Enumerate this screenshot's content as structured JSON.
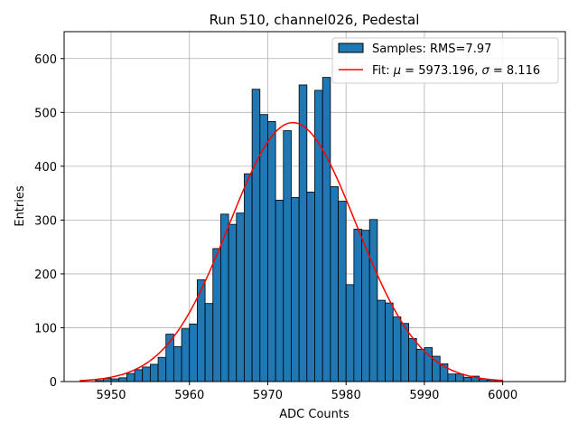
{
  "chart_data": {
    "type": "bar",
    "title": "Run 510, channel026, Pedestal",
    "xlabel": "ADC Counts",
    "ylabel": "Entries",
    "xlim": [
      5944,
      6008
    ],
    "ylim": [
      0,
      650
    ],
    "xticks": [
      5950,
      5960,
      5970,
      5980,
      5990,
      6000
    ],
    "yticks": [
      0,
      100,
      200,
      300,
      400,
      500,
      600
    ],
    "grid": true,
    "legend_position": "top-right",
    "colors": {
      "bars": "#1f77b4",
      "bar_edge": "#000000",
      "fit": "#ff0000",
      "grid": "#b0b0b0"
    },
    "histogram": {
      "name": "Samples: RMS=7.97",
      "bin_width": 1,
      "bins": [
        [
          5948.5,
          2
        ],
        [
          5949.5,
          6
        ],
        [
          5950.5,
          5
        ],
        [
          5951.5,
          7
        ],
        [
          5952.5,
          15
        ],
        [
          5953.5,
          22
        ],
        [
          5954.5,
          27
        ],
        [
          5955.5,
          32
        ],
        [
          5956.5,
          45
        ],
        [
          5957.5,
          88
        ],
        [
          5958.5,
          65
        ],
        [
          5959.5,
          98
        ],
        [
          5960.5,
          107
        ],
        [
          5961.5,
          189
        ],
        [
          5962.5,
          145
        ],
        [
          5963.5,
          247
        ],
        [
          5964.5,
          311
        ],
        [
          5965.5,
          292
        ],
        [
          5966.5,
          313
        ],
        [
          5967.5,
          386
        ],
        [
          5968.5,
          543
        ],
        [
          5969.5,
          496
        ],
        [
          5970.5,
          483
        ],
        [
          5971.5,
          337
        ],
        [
          5972.5,
          466
        ],
        [
          5973.5,
          342
        ],
        [
          5974.5,
          551
        ],
        [
          5975.5,
          352
        ],
        [
          5976.5,
          541
        ],
        [
          5977.5,
          565
        ],
        [
          5978.5,
          362
        ],
        [
          5979.5,
          335
        ],
        [
          5980.5,
          180
        ],
        [
          5981.5,
          283
        ],
        [
          5982.5,
          281
        ],
        [
          5983.5,
          301
        ],
        [
          5984.5,
          151
        ],
        [
          5985.5,
          146
        ],
        [
          5986.5,
          120
        ],
        [
          5987.5,
          108
        ],
        [
          5988.5,
          80
        ],
        [
          5989.5,
          60
        ],
        [
          5990.5,
          63
        ],
        [
          5991.5,
          47
        ],
        [
          5992.5,
          33
        ],
        [
          5993.5,
          14
        ],
        [
          5994.5,
          14
        ],
        [
          5995.5,
          8
        ],
        [
          5996.5,
          10
        ],
        [
          5997.5,
          5
        ],
        [
          5998.5,
          3
        ],
        [
          5999.5,
          2
        ]
      ]
    },
    "fit": {
      "name": "Fit: μ = 5973.196, σ = 8.116",
      "legend_prefix": "Fit: ",
      "legend_mu": "μ",
      "legend_mu_value": " = 5973.196, ",
      "legend_sigma": "σ",
      "legend_sigma_value": " = 8.116",
      "mu": 5973.196,
      "sigma": 8.116,
      "amplitude": 481,
      "x_range": [
        5946,
        6000
      ]
    }
  }
}
